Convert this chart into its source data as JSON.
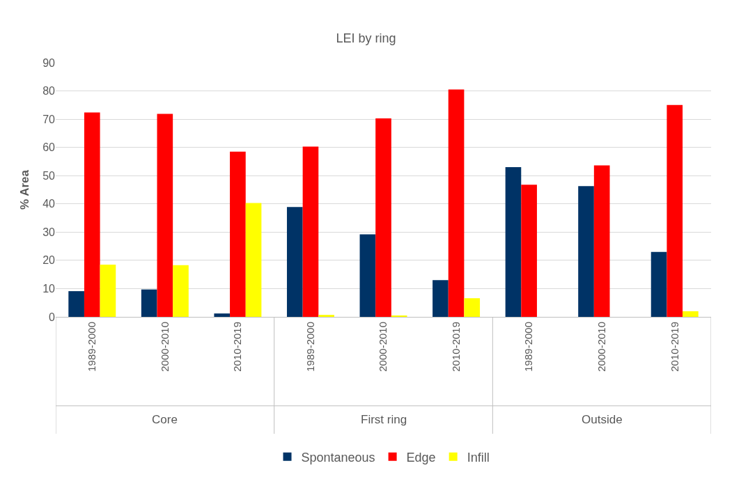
{
  "chart_data": {
    "type": "bar",
    "title": "LEI by ring",
    "ylabel": "% Area",
    "categories": [
      "1989-2000",
      "2000-2010",
      "2010-2019",
      "1989-2000",
      "2000-2010",
      "2010-2019",
      "1989-2000",
      "2000-2010",
      "2010-2019"
    ],
    "series": [
      {
        "name": "Spontaneous",
        "color": "#003366",
        "values": [
          9.1,
          9.7,
          1.2,
          38.9,
          29.2,
          13.0,
          53.0,
          46.3,
          23.0
        ]
      },
      {
        "name": "Edge",
        "color": "#ff0000",
        "values": [
          72.4,
          71.9,
          58.5,
          60.3,
          70.3,
          80.5,
          46.8,
          53.6,
          75.0
        ]
      },
      {
        "name": "Infill",
        "color": "#ffff00",
        "values": [
          18.5,
          18.3,
          40.3,
          0.7,
          0.4,
          6.6,
          0,
          0,
          2.0
        ]
      }
    ],
    "annotations": [
      "Core",
      "First ring",
      "Outside"
    ],
    "ylim": [
      0,
      90
    ],
    "yticks": [
      0,
      10,
      20,
      30,
      40,
      50,
      60,
      70,
      80,
      90
    ],
    "grid": "y",
    "legend": "bottom"
  }
}
